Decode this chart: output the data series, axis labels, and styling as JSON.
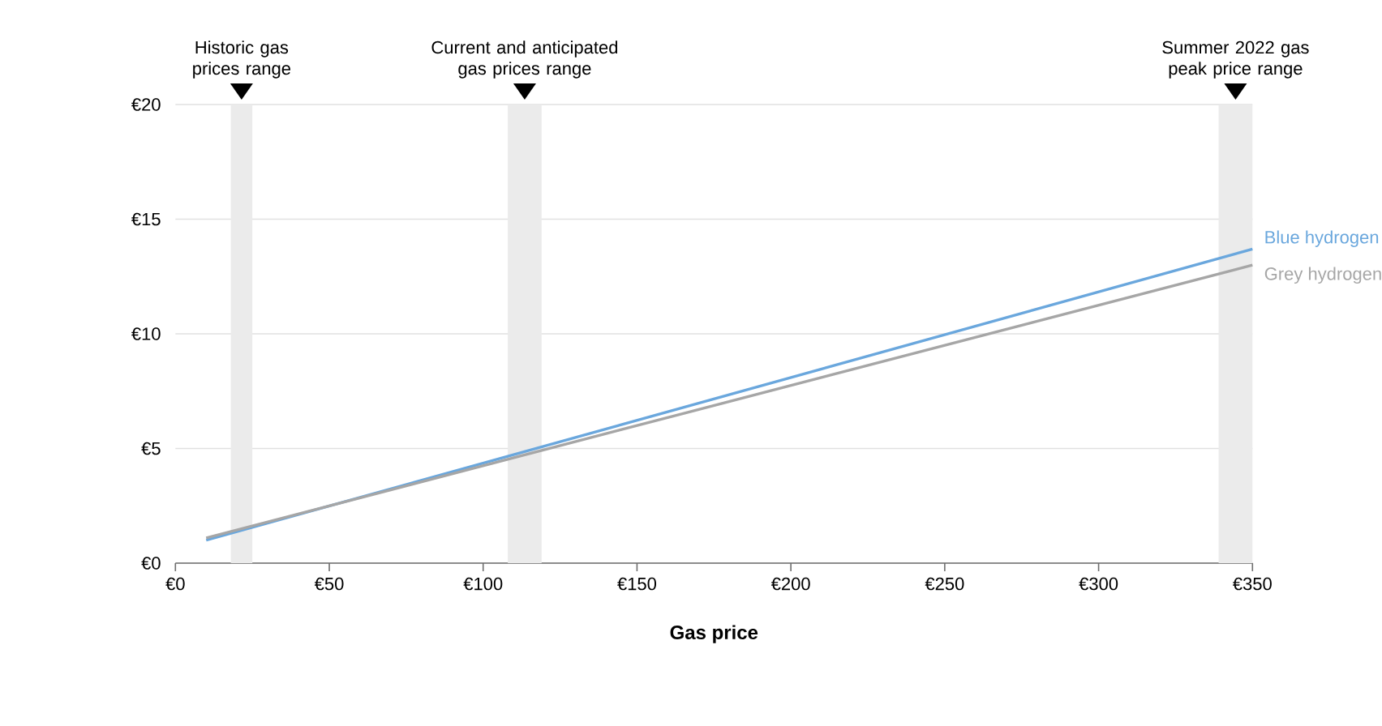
{
  "chart_data": {
    "type": "line",
    "xlabel": "Gas price",
    "x": [
      10,
      350
    ],
    "series": [
      {
        "name": "Blue hydrogen",
        "color": "#6aa7dd",
        "values": [
          1.0,
          13.7
        ]
      },
      {
        "name": "Grey hydrogen",
        "color": "#a6a6a6",
        "values": [
          1.1,
          13.0
        ]
      }
    ],
    "xlim": [
      0,
      350
    ],
    "xticks": [
      {
        "value": 0,
        "label": "€0"
      },
      {
        "value": 50,
        "label": "€50"
      },
      {
        "value": 100,
        "label": "€100"
      },
      {
        "value": 150,
        "label": "€150"
      },
      {
        "value": 200,
        "label": "€200"
      },
      {
        "value": 250,
        "label": "€250"
      },
      {
        "value": 300,
        "label": "€300"
      },
      {
        "value": 350,
        "label": "€350"
      }
    ],
    "ylim": [
      0,
      20
    ],
    "yticks": [
      {
        "value": 0,
        "label": "€0"
      },
      {
        "value": 5,
        "label": "€5"
      },
      {
        "value": 10,
        "label": "€10"
      },
      {
        "value": 15,
        "label": "€15"
      },
      {
        "value": 20,
        "label": "€20"
      }
    ],
    "bands": [
      {
        "axis": "x",
        "from": 18,
        "to": 25,
        "label": "Historic gas prices range",
        "color": "#ebebeb"
      },
      {
        "axis": "x",
        "from": 108,
        "to": 119,
        "label": "Current and anticipated gas prices range",
        "color": "#ebebeb"
      },
      {
        "axis": "x",
        "from": 339,
        "to": 350,
        "label": "Summer 2022 gas peak price range",
        "color": "#ebebeb"
      }
    ],
    "grid": "y",
    "legend": false,
    "marker": "none",
    "line_style": "solid"
  }
}
